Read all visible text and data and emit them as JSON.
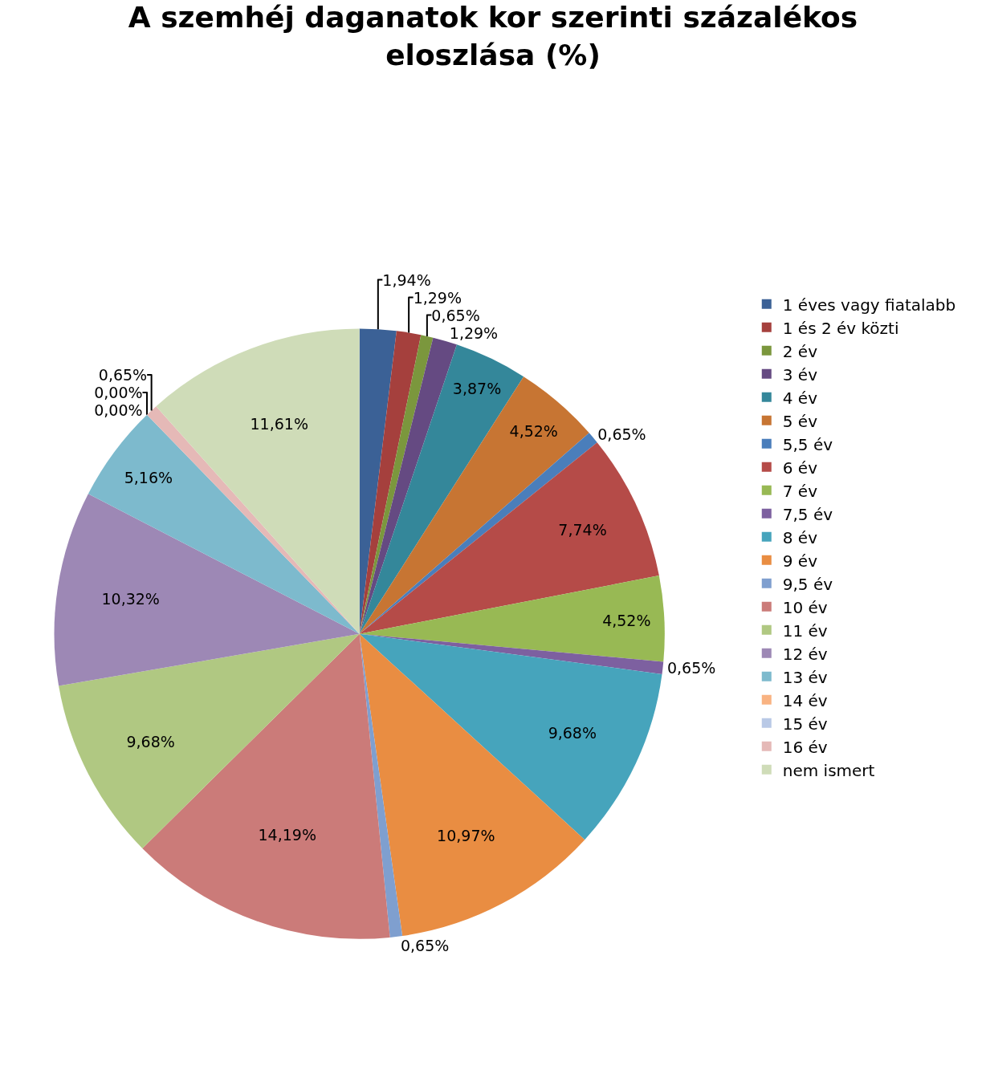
{
  "chart_data": {
    "type": "pie",
    "title": "A szemhéj daganatok kor szerinti százalékos eloszlása (%)",
    "categories": [
      "1 éves vagy fiatalabb",
      "1 és 2 év közti",
      "2 év",
      "3 év",
      "4 év",
      "5 év",
      "5,5 év",
      "6 év",
      "7 év",
      "7,5 év",
      "8 év",
      "9 év",
      "9,5 év",
      "10 év",
      "11 év",
      "12 év",
      "13 év",
      "14 év",
      "15 év",
      "16 év",
      "nem ismert"
    ],
    "values": [
      1.94,
      1.29,
      0.65,
      1.29,
      3.87,
      4.52,
      0.65,
      7.74,
      4.52,
      0.65,
      9.68,
      10.97,
      0.65,
      14.19,
      9.68,
      10.32,
      5.16,
      0.0,
      0.0,
      0.65,
      11.61
    ],
    "value_labels": [
      "1,94%",
      "1,29%",
      "0,65%",
      "1,29%",
      "3,87%",
      "4,52%",
      "0,65%",
      "7,74%",
      "4,52%",
      "0,65%",
      "9,68%",
      "10,97%",
      "0,65%",
      "14,19%",
      "9,68%",
      "10,32%",
      "5,16%",
      "0,00%",
      "0,00%",
      "0,65%",
      "11,61%"
    ],
    "colors": [
      "#3b6196",
      "#a5403d",
      "#7b973d",
      "#654a82",
      "#34879a",
      "#c77533",
      "#4a7ebb",
      "#b54b48",
      "#98b954",
      "#7d60a0",
      "#46a4bc",
      "#e98d42",
      "#7f9fcf",
      "#cb7b79",
      "#b0c882",
      "#9d88b5",
      "#7dbacd",
      "#f9b382",
      "#b9c9e6",
      "#e5b9b7",
      "#cfdcb8"
    ],
    "legend": "right"
  }
}
